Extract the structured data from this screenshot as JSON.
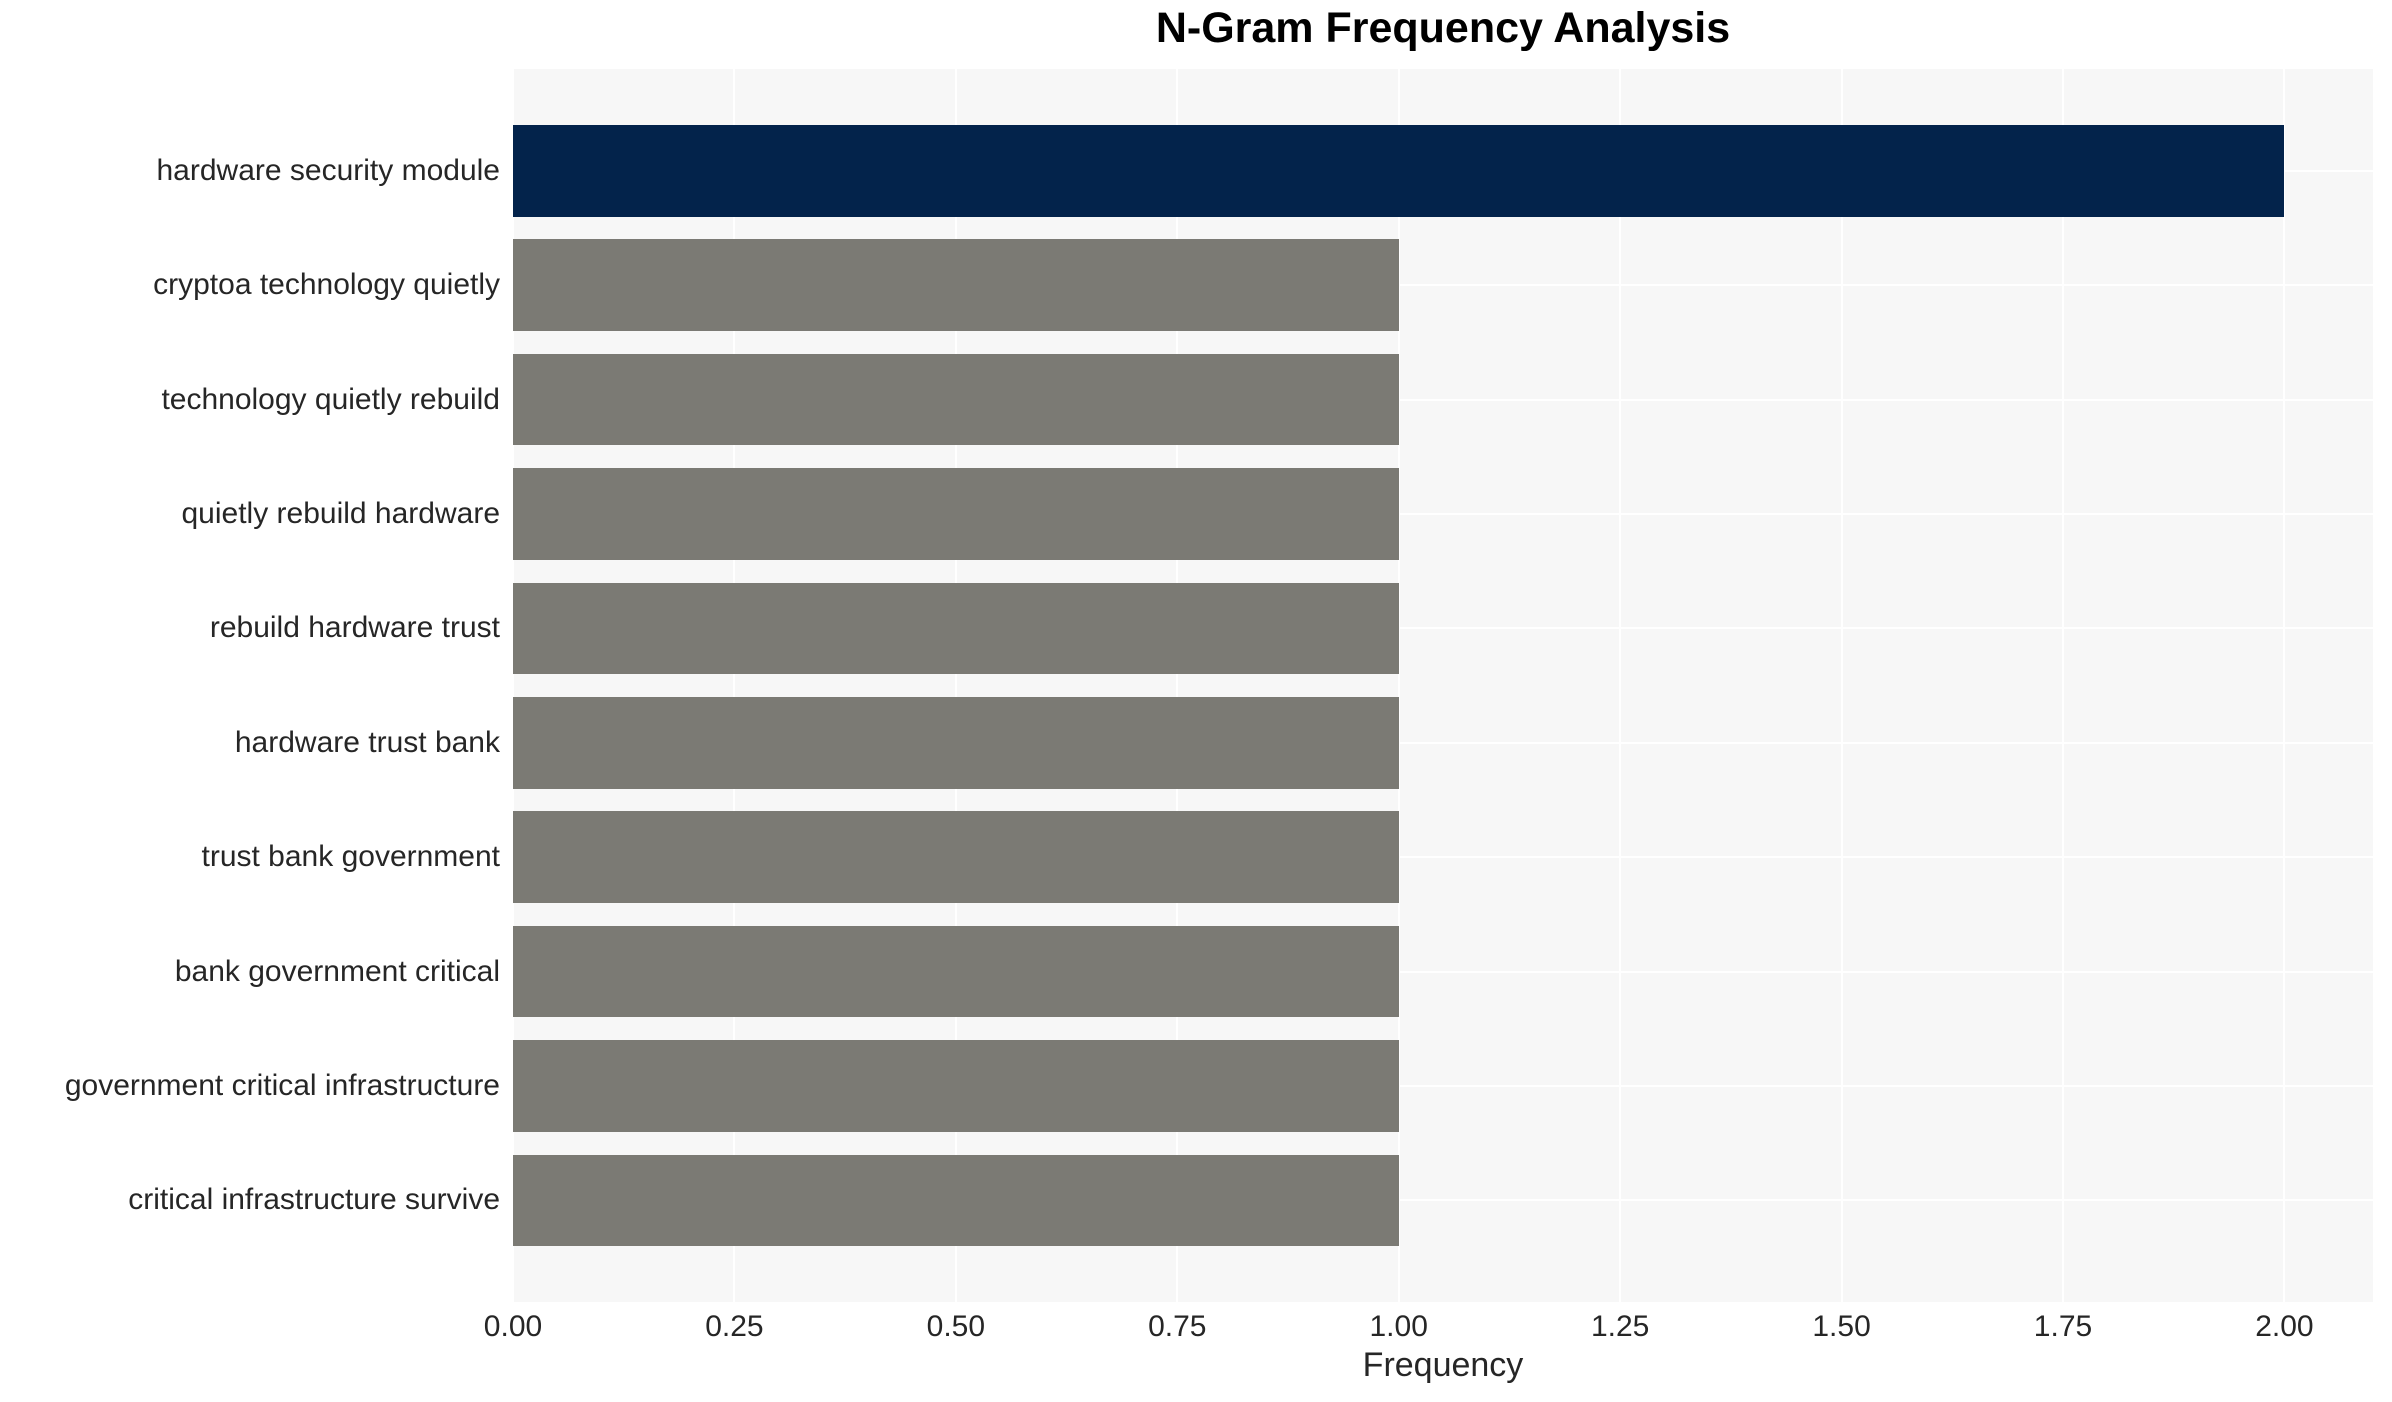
{
  "chart_data": {
    "type": "bar",
    "orientation": "horizontal",
    "title": "N-Gram Frequency Analysis",
    "xlabel": "Frequency",
    "ylabel": "",
    "categories": [
      "hardware security module",
      "cryptoa technology quietly",
      "technology quietly rebuild",
      "quietly rebuild hardware",
      "rebuild hardware trust",
      "hardware trust bank",
      "trust bank government",
      "bank government critical",
      "government critical infrastructure",
      "critical infrastructure survive"
    ],
    "values": [
      2.0,
      1.0,
      1.0,
      1.0,
      1.0,
      1.0,
      1.0,
      1.0,
      1.0,
      1.0
    ],
    "bar_colors": [
      "#03234b",
      "#7b7a74",
      "#7b7a74",
      "#7b7a74",
      "#7b7a74",
      "#7b7a74",
      "#7b7a74",
      "#7b7a74",
      "#7b7a74",
      "#7b7a74"
    ],
    "xlim": [
      0,
      2.1
    ],
    "xticks": [
      0.0,
      0.25,
      0.5,
      0.75,
      1.0,
      1.25,
      1.5,
      1.75,
      2.0
    ],
    "xtick_labels": [
      "0.00",
      "0.25",
      "0.50",
      "0.75",
      "1.00",
      "1.25",
      "1.50",
      "1.75",
      "2.00"
    ],
    "grid": true,
    "legend": false,
    "colors": {
      "highlight_bar": "#03234b",
      "default_bar": "#7b7a74",
      "plot_background": "#f7f7f7",
      "gridline": "#ffffff",
      "tick_text": "#262626",
      "title_text": "#000000",
      "page_background": "#ffffff"
    }
  }
}
